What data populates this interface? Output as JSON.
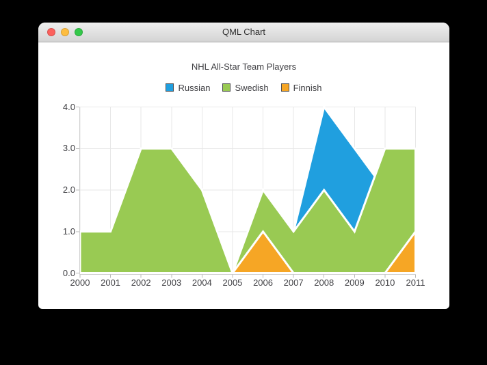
{
  "window": {
    "title": "QML Chart",
    "controls": [
      {
        "name": "close",
        "color": "#fc615d"
      },
      {
        "name": "minimize",
        "color": "#fdbd40"
      },
      {
        "name": "zoom",
        "color": "#34c84a"
      }
    ]
  },
  "chart_data": {
    "type": "area",
    "title": "NHL All-Star Team Players",
    "xlabel": "",
    "ylabel": "",
    "x": [
      2000,
      2001,
      2002,
      2003,
      2004,
      2005,
      2006,
      2007,
      2008,
      2009,
      2010,
      2011
    ],
    "series": [
      {
        "name": "Russian",
        "color": "#209fdf",
        "values": [
          1,
          1,
          1,
          1,
          1,
          0,
          1,
          1,
          4,
          3,
          2,
          1
        ]
      },
      {
        "name": "Swedish",
        "color": "#99ca53",
        "values": [
          1,
          1,
          3,
          3,
          2,
          0,
          2,
          1,
          2,
          1,
          3,
          3
        ]
      },
      {
        "name": "Finnish",
        "color": "#f6a625",
        "values": [
          0,
          0,
          0,
          0,
          0,
          0,
          1,
          0,
          0,
          0,
          0,
          1
        ]
      }
    ],
    "xlim": [
      2000,
      2011
    ],
    "ylim": [
      0,
      4
    ],
    "x_tick_labels": [
      "2000",
      "2001",
      "2002",
      "2003",
      "2004",
      "2005",
      "2006",
      "2007",
      "2008",
      "2009",
      "2010",
      "2011"
    ],
    "y_tick_labels": [
      "0.0",
      "1.0",
      "2.0",
      "3.0",
      "4.0"
    ],
    "grid": true,
    "legend_position": "top",
    "series_border_color": "#ffffff",
    "grid_color": "#e7e7e7",
    "axis_color": "#d0d0d0",
    "tick_color": "#b9b9b9",
    "label_color": "#404044",
    "plot_background": "#ffffff"
  }
}
